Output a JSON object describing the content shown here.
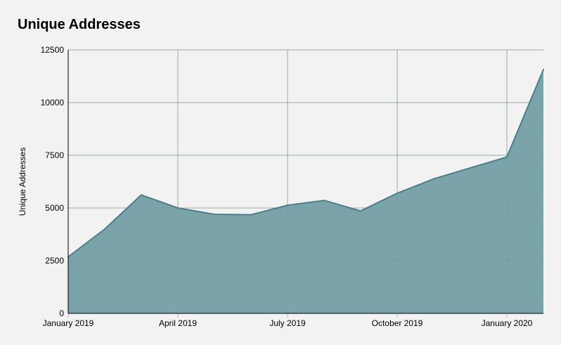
{
  "chart_data": {
    "type": "area",
    "title": "Unique Addresses",
    "xlabel": "",
    "ylabel": "Unique Addresses",
    "x_tick_labels": [
      "January 2019",
      "April 2019",
      "July 2019",
      "October 2019",
      "January 2020"
    ],
    "y_tick_labels": [
      "0",
      "2500",
      "5000",
      "7500",
      "10000",
      "12500"
    ],
    "ylim": [
      0,
      12500
    ],
    "xlim": [
      "2019-01-01",
      "2020-02-01"
    ],
    "grid": true,
    "x": [
      "2019-01-01",
      "2019-02-01",
      "2019-03-01",
      "2019-04-01",
      "2019-05-01",
      "2019-06-01",
      "2019-07-01",
      "2019-08-01",
      "2019-09-01",
      "2019-10-01",
      "2019-11-01",
      "2019-12-01",
      "2020-01-01",
      "2020-02-01"
    ],
    "values": [
      2680,
      4000,
      5620,
      5000,
      4700,
      4680,
      5130,
      5360,
      4860,
      5700,
      6380,
      6900,
      7420,
      11570
    ],
    "colors": {
      "fill": "#7aa3aa",
      "line": "#4a7f8c",
      "grid": "#bdbdbd",
      "background": "#f2f2f2"
    }
  }
}
